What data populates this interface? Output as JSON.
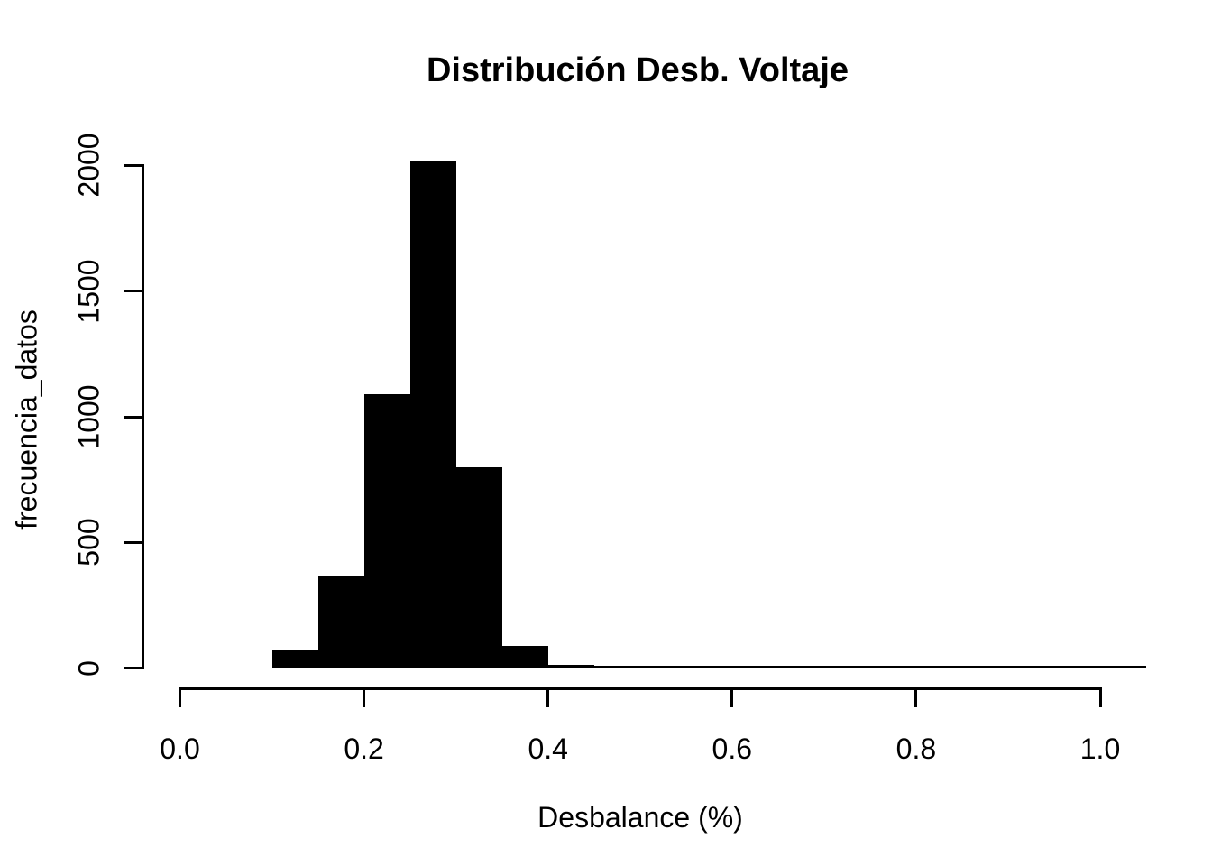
{
  "chart_data": {
    "type": "bar",
    "subtype": "histogram",
    "title": "Distribución Desb. Voltaje",
    "xlabel": "Desbalance (%)",
    "ylabel": "frecuencia_datos",
    "bin_width": 0.05,
    "bin_edges": [
      0.1,
      0.15,
      0.2,
      0.25,
      0.3,
      0.35,
      0.4,
      0.45,
      0.5,
      0.55,
      0.6,
      0.65,
      0.7,
      0.75,
      0.8,
      0.85,
      0.9,
      0.95,
      1.0,
      1.05
    ],
    "counts": [
      70,
      370,
      1090,
      2018,
      800,
      90,
      15,
      10,
      10,
      10,
      10,
      10,
      10,
      10,
      10,
      10,
      10,
      10,
      10
    ],
    "x_ticks": [
      0.0,
      0.2,
      0.4,
      0.6,
      0.8,
      1.0
    ],
    "x_tick_labels": [
      "0.0",
      "0.2",
      "0.4",
      "0.6",
      "0.8",
      "1.0"
    ],
    "y_ticks": [
      0,
      500,
      1000,
      1500,
      2000
    ],
    "y_tick_labels": [
      "0",
      "500",
      "1000",
      "1500",
      "2000"
    ],
    "xlim": [
      -0.04,
      1.09
    ],
    "ylim": [
      0,
      2018
    ],
    "grid": false,
    "legend": null,
    "bar_color": "#000000",
    "axis_color": "#000000",
    "background_color": "#ffffff"
  }
}
